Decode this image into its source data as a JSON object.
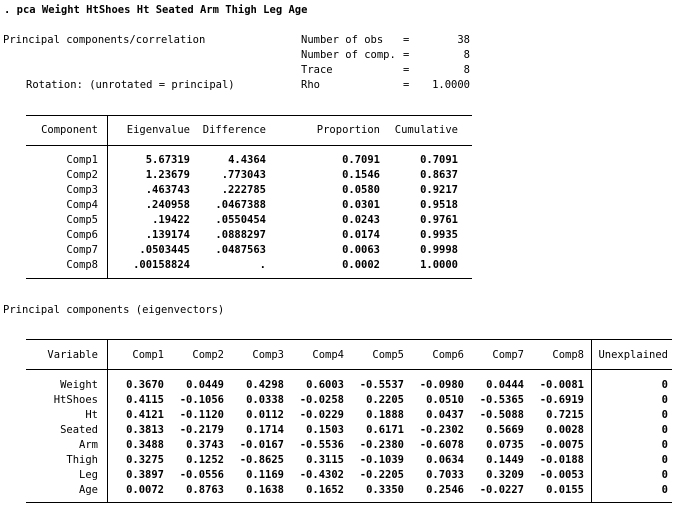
{
  "command": ". pca Weight HtShoes Ht Seated Arm Thigh Leg Age",
  "summary": {
    "title": "Principal components/correlation",
    "rotation": "Rotation: (unrotated = principal)",
    "stats": [
      {
        "label": "Number of obs",
        "eq": "=",
        "value": "38"
      },
      {
        "label": "Number of comp.",
        "eq": "=",
        "value": "8"
      },
      {
        "label": "Trace",
        "eq": "=",
        "value": "8"
      },
      {
        "label": "Rho",
        "eq": "=",
        "value": "1.0000"
      }
    ]
  },
  "eigen_table": {
    "headers": [
      "Component",
      "Eigenvalue",
      "Difference",
      "Proportion",
      "Cumulative"
    ],
    "rows": [
      {
        "component": "Comp1",
        "eigenvalue": "5.67319",
        "difference": "4.4364",
        "proportion": "0.7091",
        "cumulative": "0.7091"
      },
      {
        "component": "Comp2",
        "eigenvalue": "1.23679",
        "difference": ".773043",
        "proportion": "0.1546",
        "cumulative": "0.8637"
      },
      {
        "component": "Comp3",
        "eigenvalue": ".463743",
        "difference": ".222785",
        "proportion": "0.0580",
        "cumulative": "0.9217"
      },
      {
        "component": "Comp4",
        "eigenvalue": ".240958",
        "difference": ".0467388",
        "proportion": "0.0301",
        "cumulative": "0.9518"
      },
      {
        "component": "Comp5",
        "eigenvalue": ".19422",
        "difference": ".0550454",
        "proportion": "0.0243",
        "cumulative": "0.9761"
      },
      {
        "component": "Comp6",
        "eigenvalue": ".139174",
        "difference": ".0888297",
        "proportion": "0.0174",
        "cumulative": "0.9935"
      },
      {
        "component": "Comp7",
        "eigenvalue": ".0503445",
        "difference": ".0487563",
        "proportion": "0.0063",
        "cumulative": "0.9998"
      },
      {
        "component": "Comp8",
        "eigenvalue": ".00158824",
        "difference": ".",
        "proportion": "0.0002",
        "cumulative": "1.0000"
      }
    ]
  },
  "eigenvectors": {
    "title": "Principal components (eigenvectors)",
    "headers": [
      "Variable",
      "Comp1",
      "Comp2",
      "Comp3",
      "Comp4",
      "Comp5",
      "Comp6",
      "Comp7",
      "Comp8",
      "Unexplained"
    ],
    "rows": [
      {
        "variable": "Weight",
        "values": [
          "0.3670",
          "0.0449",
          "0.4298",
          "0.6003",
          "-0.5537",
          "-0.0980",
          "0.0444",
          "-0.0081",
          "0"
        ]
      },
      {
        "variable": "HtShoes",
        "values": [
          "0.4115",
          "-0.1056",
          "0.0338",
          "-0.0258",
          "0.2205",
          "0.0510",
          "-0.5365",
          "-0.6919",
          "0"
        ]
      },
      {
        "variable": "Ht",
        "values": [
          "0.4121",
          "-0.1120",
          "0.0112",
          "-0.0229",
          "0.1888",
          "0.0437",
          "-0.5088",
          "0.7215",
          "0"
        ]
      },
      {
        "variable": "Seated",
        "values": [
          "0.3813",
          "-0.2179",
          "0.1714",
          "0.1503",
          "0.6171",
          "-0.2302",
          "0.5669",
          "0.0028",
          "0"
        ]
      },
      {
        "variable": "Arm",
        "values": [
          "0.3488",
          "0.3743",
          "-0.0167",
          "-0.5536",
          "-0.2380",
          "-0.6078",
          "0.0735",
          "-0.0075",
          "0"
        ]
      },
      {
        "variable": "Thigh",
        "values": [
          "0.3275",
          "0.1252",
          "-0.8625",
          "0.3115",
          "-0.1039",
          "0.0634",
          "0.1449",
          "-0.0188",
          "0"
        ]
      },
      {
        "variable": "Leg",
        "values": [
          "0.3897",
          "-0.0556",
          "0.1169",
          "-0.4302",
          "-0.2205",
          "0.7033",
          "0.3209",
          "-0.0053",
          "0"
        ]
      },
      {
        "variable": "Age",
        "values": [
          "0.0072",
          "0.8763",
          "0.1638",
          "0.1652",
          "0.3350",
          "0.2546",
          "-0.0227",
          "0.0155",
          "0"
        ]
      }
    ]
  }
}
